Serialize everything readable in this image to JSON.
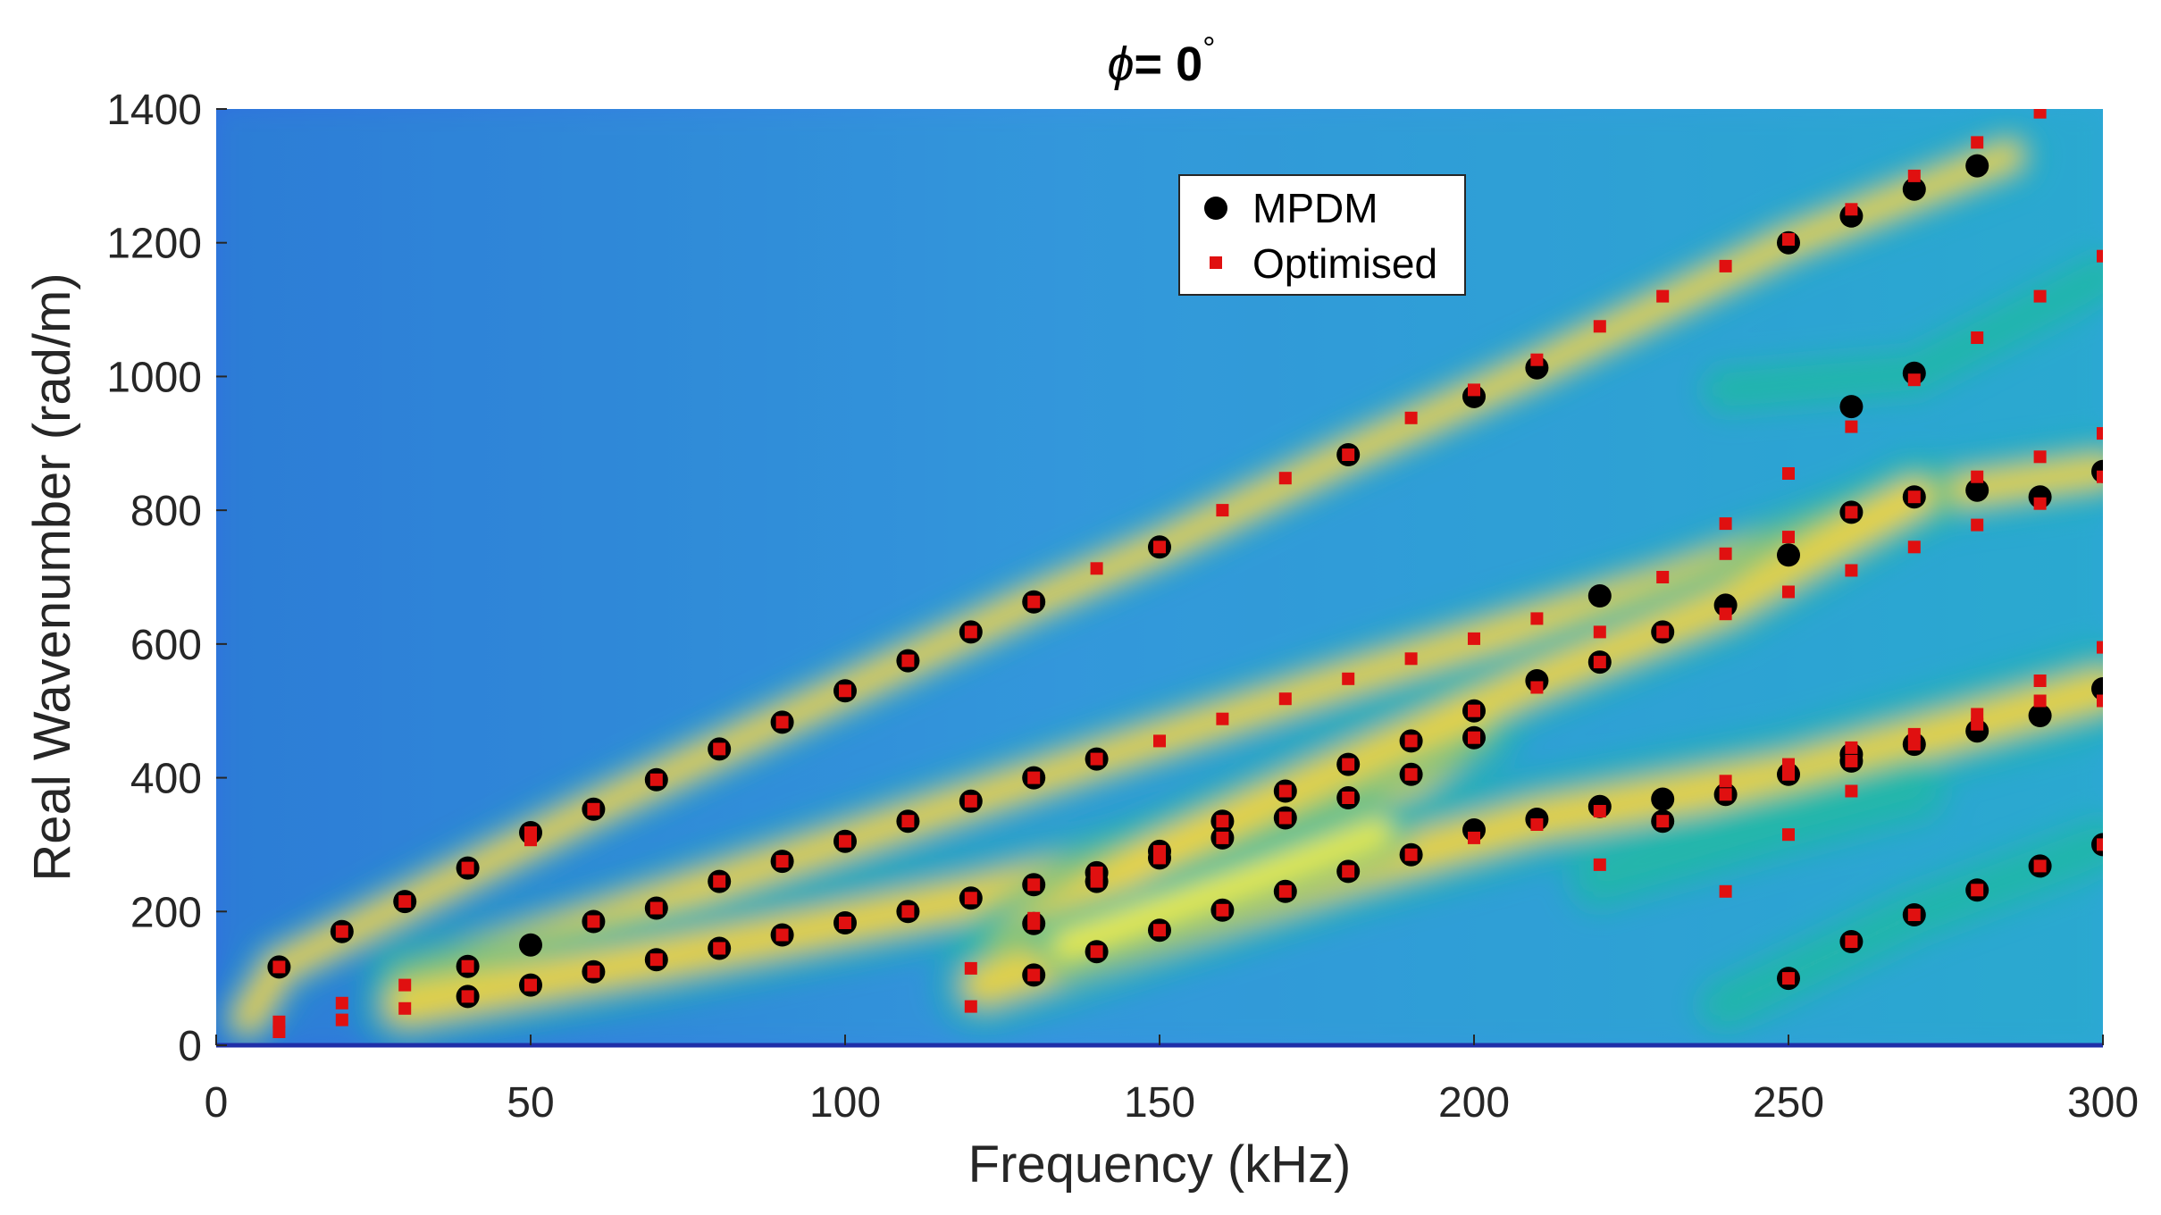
{
  "chart_data": {
    "type": "scatter",
    "title": "ϕ= 0°",
    "title_symbol": "ϕ",
    "title_rest": "= 0",
    "title_degree": "°",
    "xlabel": "Frequency (kHz)",
    "ylabel": "Real Wavenumber (rad/m)",
    "xlim": [
      0,
      300
    ],
    "ylim": [
      0,
      1400
    ],
    "xticks": [
      0,
      50,
      100,
      150,
      200,
      250,
      300
    ],
    "yticks": [
      0,
      200,
      400,
      600,
      800,
      1000,
      1200,
      1400
    ],
    "grid": false,
    "legend_position": "top-center",
    "background": "dispersion heatmap (parula colormap)",
    "colors": {
      "heat_low": "#2f7ee0",
      "heat_mid": "#22b8a8",
      "heat_high": "#f8d53a",
      "heat_peak": "#fff23a",
      "mpdm": "#000000",
      "optimised": "#e01010"
    },
    "series": [
      {
        "name": "MPDM",
        "marker": "circle",
        "color": "#000000",
        "points": [
          [
            10,
            117
          ],
          [
            20,
            170
          ],
          [
            30,
            215
          ],
          [
            40,
            265
          ],
          [
            50,
            318
          ],
          [
            60,
            353
          ],
          [
            70,
            397
          ],
          [
            80,
            443
          ],
          [
            90,
            483
          ],
          [
            100,
            530
          ],
          [
            110,
            575
          ],
          [
            120,
            618
          ],
          [
            130,
            663
          ],
          [
            150,
            745
          ],
          [
            180,
            883
          ],
          [
            200,
            970
          ],
          [
            210,
            1013
          ],
          [
            250,
            1200
          ],
          [
            260,
            1240
          ],
          [
            270,
            1280
          ],
          [
            280,
            1315
          ],
          [
            40,
            118
          ],
          [
            50,
            150
          ],
          [
            60,
            185
          ],
          [
            70,
            205
          ],
          [
            80,
            245
          ],
          [
            90,
            275
          ],
          [
            100,
            305
          ],
          [
            110,
            335
          ],
          [
            120,
            365
          ],
          [
            130,
            400
          ],
          [
            140,
            428
          ],
          [
            40,
            73
          ],
          [
            50,
            90
          ],
          [
            60,
            110
          ],
          [
            70,
            128
          ],
          [
            80,
            145
          ],
          [
            90,
            165
          ],
          [
            100,
            183
          ],
          [
            110,
            200
          ],
          [
            120,
            220
          ],
          [
            130,
            240
          ],
          [
            140,
            258
          ],
          [
            150,
            280
          ],
          [
            160,
            310
          ],
          [
            170,
            340
          ],
          [
            180,
            370
          ],
          [
            190,
            405
          ],
          [
            200,
            460
          ],
          [
            130,
            182
          ],
          [
            140,
            245
          ],
          [
            150,
            290
          ],
          [
            160,
            335
          ],
          [
            170,
            380
          ],
          [
            180,
            420
          ],
          [
            190,
            455
          ],
          [
            200,
            500
          ],
          [
            210,
            545
          ],
          [
            220,
            573
          ],
          [
            230,
            618
          ],
          [
            240,
            658
          ],
          [
            250,
            733
          ],
          [
            260,
            797
          ],
          [
            270,
            820
          ],
          [
            280,
            830
          ],
          [
            290,
            820
          ],
          [
            300,
            858
          ],
          [
            130,
            105
          ],
          [
            140,
            140
          ],
          [
            150,
            172
          ],
          [
            160,
            202
          ],
          [
            170,
            230
          ],
          [
            180,
            260
          ],
          [
            190,
            285
          ],
          [
            200,
            322
          ],
          [
            210,
            338
          ],
          [
            220,
            357
          ],
          [
            230,
            335
          ],
          [
            240,
            375
          ],
          [
            250,
            405
          ],
          [
            260,
            425
          ],
          [
            270,
            450
          ],
          [
            280,
            470
          ],
          [
            290,
            493
          ],
          [
            300,
            533
          ],
          [
            230,
            368
          ],
          [
            260,
            435
          ],
          [
            220,
            672
          ],
          [
            250,
            100
          ],
          [
            260,
            155
          ],
          [
            270,
            195
          ],
          [
            280,
            232
          ],
          [
            290,
            268
          ],
          [
            300,
            300
          ],
          [
            260,
            955
          ],
          [
            270,
            1005
          ]
        ]
      },
      {
        "name": "Optimised",
        "marker": "square",
        "color": "#e01010",
        "points": [
          [
            10,
            117
          ],
          [
            20,
            170
          ],
          [
            30,
            215
          ],
          [
            40,
            265
          ],
          [
            50,
            318
          ],
          [
            60,
            353
          ],
          [
            70,
            397
          ],
          [
            80,
            443
          ],
          [
            90,
            483
          ],
          [
            100,
            530
          ],
          [
            110,
            575
          ],
          [
            120,
            618
          ],
          [
            130,
            663
          ],
          [
            140,
            713
          ],
          [
            150,
            745
          ],
          [
            160,
            800
          ],
          [
            170,
            848
          ],
          [
            180,
            883
          ],
          [
            190,
            938
          ],
          [
            200,
            980
          ],
          [
            210,
            1025
          ],
          [
            220,
            1075
          ],
          [
            230,
            1120
          ],
          [
            240,
            1165
          ],
          [
            250,
            1205
          ],
          [
            260,
            1250
          ],
          [
            270,
            1300
          ],
          [
            280,
            1350
          ],
          [
            290,
            1395
          ],
          [
            40,
            118
          ],
          [
            50,
            307
          ],
          [
            60,
            185
          ],
          [
            70,
            205
          ],
          [
            80,
            245
          ],
          [
            90,
            275
          ],
          [
            100,
            305
          ],
          [
            110,
            335
          ],
          [
            120,
            365
          ],
          [
            130,
            400
          ],
          [
            140,
            428
          ],
          [
            150,
            455
          ],
          [
            160,
            488
          ],
          [
            170,
            518
          ],
          [
            180,
            548
          ],
          [
            190,
            578
          ],
          [
            200,
            608
          ],
          [
            210,
            638
          ],
          [
            220,
            618
          ],
          [
            230,
            700
          ],
          [
            240,
            735
          ],
          [
            250,
            760
          ],
          [
            260,
            710
          ],
          [
            270,
            745
          ],
          [
            280,
            778
          ],
          [
            290,
            810
          ],
          [
            300,
            850
          ],
          [
            40,
            73
          ],
          [
            50,
            90
          ],
          [
            60,
            110
          ],
          [
            70,
            128
          ],
          [
            80,
            145
          ],
          [
            90,
            165
          ],
          [
            100,
            183
          ],
          [
            110,
            200
          ],
          [
            120,
            220
          ],
          [
            130,
            240
          ],
          [
            140,
            258
          ],
          [
            150,
            280
          ],
          [
            160,
            310
          ],
          [
            170,
            340
          ],
          [
            180,
            370
          ],
          [
            190,
            405
          ],
          [
            200,
            460
          ],
          [
            130,
            182
          ],
          [
            140,
            245
          ],
          [
            150,
            290
          ],
          [
            160,
            335
          ],
          [
            170,
            380
          ],
          [
            180,
            420
          ],
          [
            190,
            455
          ],
          [
            200,
            500
          ],
          [
            210,
            535
          ],
          [
            220,
            573
          ],
          [
            230,
            618
          ],
          [
            240,
            645
          ],
          [
            250,
            678
          ],
          [
            260,
            797
          ],
          [
            270,
            820
          ],
          [
            280,
            850
          ],
          [
            290,
            880
          ],
          [
            300,
            915
          ],
          [
            130,
            105
          ],
          [
            140,
            140
          ],
          [
            150,
            172
          ],
          [
            160,
            202
          ],
          [
            170,
            230
          ],
          [
            180,
            260
          ],
          [
            190,
            285
          ],
          [
            200,
            310
          ],
          [
            210,
            330
          ],
          [
            220,
            350
          ],
          [
            230,
            335
          ],
          [
            240,
            375
          ],
          [
            250,
            405
          ],
          [
            260,
            425
          ],
          [
            270,
            450
          ],
          [
            280,
            480
          ],
          [
            290,
            515
          ],
          [
            300,
            515
          ],
          [
            240,
            780
          ],
          [
            250,
            855
          ],
          [
            260,
            925
          ],
          [
            270,
            995
          ],
          [
            280,
            1058
          ],
          [
            290,
            1120
          ],
          [
            300,
            1180
          ],
          [
            240,
            395
          ],
          [
            250,
            420
          ],
          [
            260,
            445
          ],
          [
            270,
            465
          ],
          [
            280,
            495
          ],
          [
            290,
            545
          ],
          [
            300,
            595
          ],
          [
            220,
            270
          ],
          [
            240,
            230
          ],
          [
            250,
            315
          ],
          [
            260,
            380
          ],
          [
            250,
            100
          ],
          [
            260,
            155
          ],
          [
            270,
            195
          ],
          [
            280,
            232
          ],
          [
            290,
            268
          ],
          [
            300,
            300
          ],
          [
            10,
            35
          ],
          [
            10,
            20
          ],
          [
            20,
            63
          ],
          [
            20,
            38
          ],
          [
            30,
            90
          ],
          [
            30,
            55
          ],
          [
            120,
            58
          ],
          [
            120,
            115
          ],
          [
            130,
            190
          ]
        ]
      }
    ]
  }
}
